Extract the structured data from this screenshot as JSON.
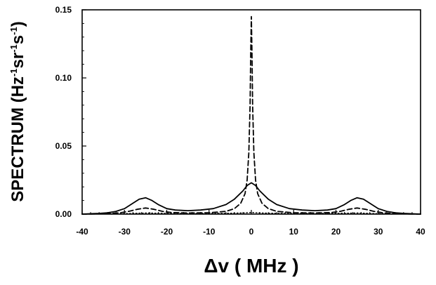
{
  "chart_data": {
    "type": "line",
    "title": "",
    "xlabel": "Δv ( MHz )",
    "ylabel_main": "SPECTRUM (Hz",
    "ylabel_sup1": "-1",
    "ylabel_mid1": "sr",
    "ylabel_sup2": "-1",
    "ylabel_mid2": "s",
    "ylabel_sup3": "-1",
    "ylabel_end": ")",
    "xlim": [
      -40,
      40
    ],
    "ylim": [
      0.0,
      0.15
    ],
    "xticks": [
      -40,
      -30,
      -20,
      -10,
      0,
      10,
      20,
      30,
      40
    ],
    "yticks": [
      0.0,
      0.05,
      0.1,
      0.15
    ],
    "xtick_labels": [
      "-40",
      "-30",
      "-20",
      "-10",
      "0",
      "10",
      "20",
      "30",
      "40"
    ],
    "ytick_labels": [
      "0.00",
      "0.05",
      "0.10",
      "0.15"
    ],
    "grid": false,
    "series": [
      {
        "style": "solid",
        "x": [
          -40,
          -36,
          -34,
          -32,
          -30,
          -28,
          -26.5,
          -25,
          -23.5,
          -22,
          -20,
          -18,
          -15,
          -12,
          -9,
          -6,
          -4,
          -2,
          -1,
          0,
          1,
          2,
          4,
          6,
          9,
          12,
          15,
          18,
          20,
          22,
          23.5,
          25,
          26.5,
          28,
          30,
          32,
          34,
          36,
          40
        ],
        "y": [
          0.0,
          0.0005,
          0.001,
          0.002,
          0.004,
          0.008,
          0.011,
          0.012,
          0.01,
          0.007,
          0.004,
          0.003,
          0.0025,
          0.003,
          0.004,
          0.007,
          0.011,
          0.017,
          0.021,
          0.023,
          0.021,
          0.017,
          0.011,
          0.007,
          0.004,
          0.003,
          0.0025,
          0.003,
          0.004,
          0.007,
          0.01,
          0.012,
          0.011,
          0.008,
          0.004,
          0.002,
          0.001,
          0.0005,
          0.0
        ]
      },
      {
        "style": "dashed",
        "x": [
          -40,
          -34,
          -31,
          -29,
          -27,
          -25,
          -23,
          -21,
          -19,
          -15,
          -10,
          -6,
          -4,
          -2.5,
          -1.5,
          -1,
          -0.6,
          -0.3,
          -0.15,
          0,
          0.15,
          0.3,
          0.6,
          1,
          1.5,
          2.5,
          4,
          6,
          10,
          15,
          19,
          21,
          23,
          25,
          27,
          29,
          31,
          34,
          40
        ],
        "y": [
          0.0,
          0.0003,
          0.001,
          0.002,
          0.0035,
          0.0045,
          0.0035,
          0.002,
          0.0012,
          0.0008,
          0.001,
          0.002,
          0.004,
          0.008,
          0.015,
          0.025,
          0.045,
          0.08,
          0.118,
          0.145,
          0.118,
          0.08,
          0.045,
          0.025,
          0.015,
          0.008,
          0.004,
          0.002,
          0.001,
          0.0008,
          0.0012,
          0.002,
          0.0035,
          0.0045,
          0.0035,
          0.002,
          0.001,
          0.0003,
          0.0
        ]
      },
      {
        "style": "dotted",
        "x": [
          -40,
          -30,
          -25,
          -20,
          -10,
          -5,
          -2,
          0,
          2,
          5,
          10,
          20,
          25,
          30,
          40
        ],
        "y": [
          0.0,
          0.0003,
          0.0008,
          0.0005,
          0.0004,
          0.0006,
          0.0009,
          0.0012,
          0.0009,
          0.0006,
          0.0004,
          0.0005,
          0.0008,
          0.0003,
          0.0
        ]
      }
    ]
  }
}
